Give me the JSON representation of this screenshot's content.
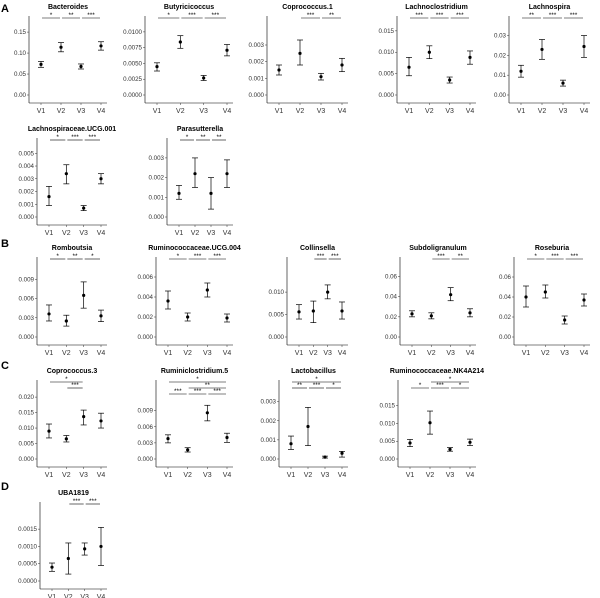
{
  "panel_letters": [
    "A",
    "B",
    "C",
    "D"
  ],
  "chart_data": [
    {
      "panel": "A",
      "type": "scatter",
      "title": "Bacteroides",
      "categories": [
        "V1",
        "V2",
        "V3",
        "V4"
      ],
      "values": [
        0.073,
        0.114,
        0.068,
        0.117
      ],
      "err_low": [
        0.066,
        0.103,
        0.062,
        0.107
      ],
      "err_high": [
        0.08,
        0.125,
        0.074,
        0.127
      ],
      "ylim": [
        0,
        0.155
      ],
      "yticks": [
        "0.00",
        "0.05",
        "0.10",
        "0.15"
      ],
      "ytick_values": [
        0,
        0.05,
        0.1,
        0.15
      ],
      "sig": [
        {
          "from": 0,
          "to": 1,
          "label": "*"
        },
        {
          "from": 1,
          "to": 2,
          "label": "**"
        },
        {
          "from": 2,
          "to": 3,
          "label": "***"
        }
      ]
    },
    {
      "panel": "A",
      "type": "scatter",
      "title": "Butyricicoccus",
      "categories": [
        "V1",
        "V2",
        "V3",
        "V4"
      ],
      "values": [
        0.0045,
        0.0084,
        0.0027,
        0.0071
      ],
      "err_low": [
        0.0038,
        0.0074,
        0.0023,
        0.0062
      ],
      "err_high": [
        0.0051,
        0.0094,
        0.0031,
        0.008
      ],
      "ylim": [
        0,
        0.0103
      ],
      "yticks": [
        "0.0000",
        "0.0025",
        "0.0050",
        "0.0075",
        "0.0100"
      ],
      "ytick_values": [
        0,
        0.0025,
        0.005,
        0.0075,
        0.01
      ],
      "sig": [
        {
          "from": 0,
          "to": 1,
          "label": "*"
        },
        {
          "from": 1,
          "to": 2,
          "label": "***"
        },
        {
          "from": 2,
          "to": 3,
          "label": "***"
        }
      ]
    },
    {
      "panel": "A",
      "type": "scatter",
      "title": "Coprococcus.1",
      "categories": [
        "V1",
        "V2",
        "V3",
        "V4"
      ],
      "values": [
        0.0015,
        0.0025,
        0.0011,
        0.0018
      ],
      "err_low": [
        0.0012,
        0.0018,
        0.0009,
        0.0014
      ],
      "err_high": [
        0.0018,
        0.0033,
        0.0013,
        0.0022
      ],
      "ylim": [
        0,
        0.0039
      ],
      "yticks": [
        "0.000",
        "0.001",
        "0.002",
        "0.003"
      ],
      "ytick_values": [
        0,
        0.001,
        0.002,
        0.003
      ],
      "sig": [
        {
          "from": 1,
          "to": 2,
          "label": "***"
        },
        {
          "from": 2,
          "to": 3,
          "label": "**"
        }
      ]
    },
    {
      "panel": "A",
      "type": "scatter",
      "title": "Lachnoclostridium",
      "categories": [
        "V1",
        "V2",
        "V3",
        "V4"
      ],
      "values": [
        0.0065,
        0.01,
        0.0035,
        0.0088
      ],
      "err_low": [
        0.0045,
        0.0085,
        0.0028,
        0.0072
      ],
      "err_high": [
        0.0088,
        0.0115,
        0.0042,
        0.0103
      ],
      "ylim": [
        0,
        0.0152
      ],
      "yticks": [
        "0.000",
        "0.005",
        "0.010",
        "0.015"
      ],
      "ytick_values": [
        0,
        0.005,
        0.01,
        0.015
      ],
      "sig": [
        {
          "from": 0,
          "to": 1,
          "label": "***"
        },
        {
          "from": 1,
          "to": 2,
          "label": "***"
        },
        {
          "from": 2,
          "to": 3,
          "label": "***"
        }
      ]
    },
    {
      "panel": "A",
      "type": "scatter",
      "title": "Lachnospira",
      "categories": [
        "V1",
        "V2",
        "V3",
        "V4"
      ],
      "values": [
        0.012,
        0.023,
        0.006,
        0.0245
      ],
      "err_low": [
        0.009,
        0.018,
        0.0045,
        0.019
      ],
      "err_high": [
        0.015,
        0.028,
        0.0075,
        0.03
      ],
      "ylim": [
        0,
        0.0328
      ],
      "yticks": [
        "0.00",
        "0.01",
        "0.02",
        "0.03"
      ],
      "ytick_values": [
        0,
        0.01,
        0.02,
        0.03
      ],
      "sig": [
        {
          "from": 0,
          "to": 1,
          "label": "**"
        },
        {
          "from": 1,
          "to": 2,
          "label": "***"
        },
        {
          "from": 2,
          "to": 3,
          "label": "***"
        }
      ]
    },
    {
      "panel": "A",
      "type": "scatter",
      "title": "Lachnospiraceae.UCG.001",
      "categories": [
        "V1",
        "V2",
        "V3",
        "V4"
      ],
      "values": [
        0.0016,
        0.0034,
        0.0007,
        0.003
      ],
      "err_low": [
        0.0009,
        0.0026,
        0.0005,
        0.0026
      ],
      "err_high": [
        0.0024,
        0.0041,
        0.0009,
        0.0034
      ],
      "ylim": [
        0,
        0.0051
      ],
      "yticks": [
        "0.000",
        "0.001",
        "0.002",
        "0.003",
        "0.004",
        "0.005"
      ],
      "ytick_values": [
        0,
        0.001,
        0.002,
        0.003,
        0.004,
        0.005
      ],
      "sig": [
        {
          "from": 0,
          "to": 1,
          "label": "*"
        },
        {
          "from": 1,
          "to": 2,
          "label": "***"
        },
        {
          "from": 2,
          "to": 3,
          "label": "***"
        }
      ]
    },
    {
      "panel": "A",
      "type": "scatter",
      "title": "Parasutterella",
      "categories": [
        "V1",
        "V2",
        "V3",
        "V4"
      ],
      "values": [
        0.0012,
        0.0022,
        0.0012,
        0.0022
      ],
      "err_low": [
        0.0009,
        0.0015,
        0.0004,
        0.0015
      ],
      "err_high": [
        0.0016,
        0.003,
        0.002,
        0.0029
      ],
      "ylim": [
        0,
        0.0033
      ],
      "yticks": [
        "0.000",
        "0.001",
        "0.002",
        "0.003"
      ],
      "ytick_values": [
        0,
        0.001,
        0.002,
        0.003
      ],
      "sig": [
        {
          "from": 0,
          "to": 1,
          "label": "*"
        },
        {
          "from": 1,
          "to": 2,
          "label": "**"
        },
        {
          "from": 2,
          "to": 3,
          "label": "**"
        }
      ]
    },
    {
      "panel": "B",
      "type": "scatter",
      "title": "Romboutsia",
      "categories": [
        "V1",
        "V2",
        "V3",
        "V4"
      ],
      "values": [
        0.0036,
        0.0025,
        0.0065,
        0.0033
      ],
      "err_low": [
        0.0025,
        0.0017,
        0.0045,
        0.0024
      ],
      "err_high": [
        0.005,
        0.0034,
        0.0086,
        0.0042
      ],
      "ylim": [
        0,
        0.0103
      ],
      "yticks": [
        "0.000",
        "0.003",
        "0.006",
        "0.009"
      ],
      "ytick_values": [
        0,
        0.003,
        0.006,
        0.009
      ],
      "sig": [
        {
          "from": 0,
          "to": 1,
          "label": "*"
        },
        {
          "from": 1,
          "to": 2,
          "label": "**"
        },
        {
          "from": 2,
          "to": 3,
          "label": "*"
        }
      ]
    },
    {
      "panel": "B",
      "type": "scatter",
      "title": "Ruminococcaceae.UCG.004",
      "categories": [
        "V1",
        "V2",
        "V3",
        "V4"
      ],
      "values": [
        0.0036,
        0.002,
        0.0047,
        0.0019
      ],
      "err_low": [
        0.0028,
        0.0016,
        0.004,
        0.0015
      ],
      "err_high": [
        0.0046,
        0.0024,
        0.0054,
        0.0023
      ],
      "ylim": [
        0,
        0.0066
      ],
      "yticks": [
        "0.000",
        "0.002",
        "0.004",
        "0.006"
      ],
      "ytick_values": [
        0,
        0.002,
        0.004,
        0.006
      ],
      "sig": [
        {
          "from": 0,
          "to": 1,
          "label": "*"
        },
        {
          "from": 1,
          "to": 2,
          "label": "***"
        },
        {
          "from": 2,
          "to": 3,
          "label": "***"
        }
      ]
    },
    {
      "panel": "B",
      "type": "scatter",
      "title": "Collinsella",
      "categories": [
        "V1",
        "V2",
        "V3",
        "V4"
      ],
      "values": [
        0.0056,
        0.0058,
        0.01,
        0.0058
      ],
      "err_low": [
        0.004,
        0.0032,
        0.0085,
        0.004
      ],
      "err_high": [
        0.0072,
        0.008,
        0.0116,
        0.0078
      ],
      "ylim": [
        0,
        0.0147
      ],
      "yticks": [
        "0.000",
        "0.005",
        "0.010"
      ],
      "ytick_values": [
        0,
        0.005,
        0.01
      ],
      "sig": [
        {
          "from": 1,
          "to": 2,
          "label": "***"
        },
        {
          "from": 2,
          "to": 3,
          "label": "***"
        }
      ]
    },
    {
      "panel": "B",
      "type": "scatter",
      "title": "Subdoligranulum",
      "categories": [
        "V1",
        "V2",
        "V3",
        "V4"
      ],
      "values": [
        0.023,
        0.021,
        0.042,
        0.024
      ],
      "err_low": [
        0.02,
        0.018,
        0.036,
        0.02
      ],
      "err_high": [
        0.026,
        0.024,
        0.049,
        0.028
      ],
      "ylim": [
        0,
        0.0655
      ],
      "yticks": [
        "0.00",
        "0.02",
        "0.04",
        "0.06"
      ],
      "ytick_values": [
        0,
        0.02,
        0.04,
        0.06
      ],
      "sig": [
        {
          "from": 1,
          "to": 2,
          "label": "***"
        },
        {
          "from": 2,
          "to": 3,
          "label": "**"
        }
      ]
    },
    {
      "panel": "B",
      "type": "scatter",
      "title": "Roseburia",
      "categories": [
        "V1",
        "V2",
        "V3",
        "V4"
      ],
      "values": [
        0.04,
        0.045,
        0.017,
        0.037
      ],
      "err_low": [
        0.03,
        0.039,
        0.013,
        0.031
      ],
      "err_high": [
        0.051,
        0.052,
        0.021,
        0.043
      ],
      "ylim": [
        0,
        0.066
      ],
      "yticks": [
        "0.00",
        "0.02",
        "0.04",
        "0.06"
      ],
      "ytick_values": [
        0,
        0.02,
        0.04,
        0.06
      ],
      "sig": [
        {
          "from": 0,
          "to": 1,
          "label": "*"
        },
        {
          "from": 1,
          "to": 2,
          "label": "***"
        },
        {
          "from": 2,
          "to": 3,
          "label": "***"
        }
      ]
    },
    {
      "panel": "C",
      "type": "scatter",
      "title": "Coprococcus.3",
      "categories": [
        "V1",
        "V2",
        "V3",
        "V4"
      ],
      "values": [
        0.009,
        0.0065,
        0.0137,
        0.0123
      ],
      "err_low": [
        0.0068,
        0.0055,
        0.011,
        0.01
      ],
      "err_high": [
        0.0113,
        0.0076,
        0.0158,
        0.0148
      ],
      "ylim": [
        0,
        0.021
      ],
      "yticks": [
        "0.000",
        "0.005",
        "0.010",
        "0.015",
        "0.020"
      ],
      "ytick_values": [
        0,
        0.005,
        0.01,
        0.015,
        0.02
      ],
      "sig": [
        {
          "from": 1,
          "to": 2,
          "label": "***"
        },
        {
          "from": 0,
          "to": 2,
          "label": "*"
        }
      ]
    },
    {
      "panel": "C",
      "type": "scatter",
      "title": "Ruminiclostridium.5",
      "categories": [
        "V1",
        "V2",
        "V3",
        "V4"
      ],
      "values": [
        0.0038,
        0.0017,
        0.0086,
        0.004
      ],
      "err_low": [
        0.003,
        0.0013,
        0.0071,
        0.0031
      ],
      "err_high": [
        0.0045,
        0.0021,
        0.01,
        0.0048
      ],
      "ylim": [
        0,
        0.0121
      ],
      "yticks": [
        "0.000",
        "0.003",
        "0.006",
        "0.009"
      ],
      "ytick_values": [
        0,
        0.003,
        0.006,
        0.009
      ],
      "sig": [
        {
          "from": 0,
          "to": 1,
          "label": "***"
        },
        {
          "from": 1,
          "to": 2,
          "label": "***"
        },
        {
          "from": 2,
          "to": 3,
          "label": "***"
        },
        {
          "from": 1,
          "to": 3,
          "label": "**"
        },
        {
          "from": 0,
          "to": 3,
          "label": "*"
        }
      ]
    },
    {
      "panel": "C",
      "type": "scatter",
      "title": "Lactobacillus",
      "categories": [
        "V1",
        "V2",
        "V3",
        "V4"
      ],
      "values": [
        0.0008,
        0.0017,
        0.0001,
        0.0003
      ],
      "err_low": [
        0.0005,
        0.0007,
        5e-05,
        0.0001
      ],
      "err_high": [
        0.0012,
        0.0027,
        0.00015,
        0.0004
      ],
      "ylim": [
        0,
        0.0034
      ],
      "yticks": [
        "0.000",
        "0.001",
        "0.002",
        "0.003"
      ],
      "ytick_values": [
        0,
        0.001,
        0.002,
        0.003
      ],
      "sig": [
        {
          "from": 0,
          "to": 1,
          "label": "**"
        },
        {
          "from": 1,
          "to": 2,
          "label": "***"
        },
        {
          "from": 2,
          "to": 3,
          "label": "*"
        },
        {
          "from": 0,
          "to": 3,
          "label": "*"
        }
      ]
    },
    {
      "panel": "C",
      "type": "scatter",
      "title": "Ruminococcaceae.NK4A214",
      "categories": [
        "V1",
        "V2",
        "V3",
        "V4"
      ],
      "values": [
        0.0045,
        0.0102,
        0.0027,
        0.0047
      ],
      "err_low": [
        0.0035,
        0.007,
        0.0022,
        0.0038
      ],
      "err_high": [
        0.0055,
        0.0135,
        0.0032,
        0.0056
      ],
      "ylim": [
        0,
        0.0183
      ],
      "yticks": [
        "0.000",
        "0.005",
        "0.010",
        "0.015"
      ],
      "ytick_values": [
        0,
        0.005,
        0.01,
        0.015
      ],
      "sig": [
        {
          "from": 0,
          "to": 1,
          "label": "*"
        },
        {
          "from": 1,
          "to": 2,
          "label": "***"
        },
        {
          "from": 2,
          "to": 3,
          "label": "*"
        },
        {
          "from": 1,
          "to": 3,
          "label": "*"
        }
      ]
    },
    {
      "panel": "D",
      "type": "scatter",
      "title": "UBA1819",
      "categories": [
        "V1",
        "V2",
        "V3",
        "V4"
      ],
      "values": [
        0.0004,
        0.00065,
        0.00093,
        0.001
      ],
      "err_low": [
        0.00028,
        0.0002,
        0.00075,
        0.00045
      ],
      "err_high": [
        0.00052,
        0.0011,
        0.0011,
        0.00155
      ],
      "ylim": [
        0,
        0.00188
      ],
      "yticks": [
        "0.0000",
        "0.0005",
        "0.0010",
        "0.0015"
      ],
      "ytick_values": [
        0,
        0.0005,
        0.001,
        0.0015
      ],
      "sig": [
        {
          "from": 1,
          "to": 2,
          "label": "***"
        },
        {
          "from": 2,
          "to": 3,
          "label": "***"
        }
      ]
    }
  ]
}
